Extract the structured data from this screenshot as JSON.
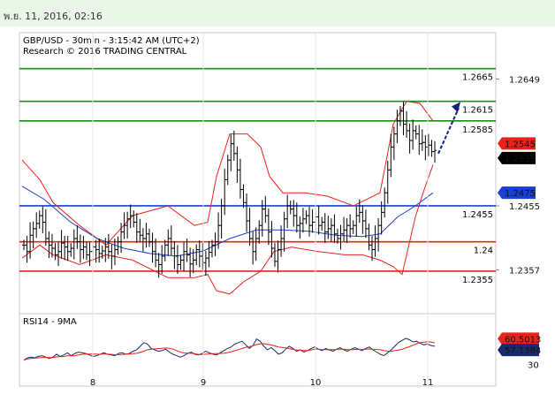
{
  "header": {
    "timestamp": "พ.ย. 11, 2016, 02:16"
  },
  "chart_data": {
    "type": "candlestick",
    "title": "GBP/USD - 30min - 3:15:42 AM (UTC+2)",
    "subtitle": "Research © 2016 TRADING CENTRAL",
    "y_axis_labels": [
      "1.2649",
      "1.2455",
      "1.2357"
    ],
    "x_axis_labels": [
      "8",
      "9",
      "10",
      "11"
    ],
    "price_ylim": [
      1.229,
      1.272
    ],
    "price_tags": [
      {
        "value": 1.2545,
        "label": "1.2545",
        "color": "#e8231b"
      },
      {
        "value": 1.2535,
        "label": "1.2535",
        "color": "#000000"
      },
      {
        "value": 1.2475,
        "label": "1.2475",
        "color": "#1a3fd1"
      }
    ],
    "resistance_levels": [
      {
        "value": 1.2665,
        "label": "1.2665",
        "color": "#1c8c1c"
      },
      {
        "value": 1.2615,
        "label": "1.2615",
        "color": "#1c8c1c"
      },
      {
        "value": 1.2585,
        "label": "1.2585",
        "color": "#1c8c1c"
      }
    ],
    "pivot_level": {
      "value": 1.2455,
      "label": "1.2455",
      "color": "#1a3fd1"
    },
    "support_levels": [
      {
        "value": 1.24,
        "label": "1.24",
        "color": "#e8231b"
      },
      {
        "value": 1.2355,
        "label": "1.2355",
        "color": "#e8231b"
      }
    ],
    "close_series": [
      1.2395,
      1.2385,
      1.241,
      1.242,
      1.2428,
      1.244,
      1.243,
      1.2405,
      1.2395,
      1.239,
      1.238,
      1.2385,
      1.2398,
      1.2392,
      1.2385,
      1.239,
      1.2405,
      1.24,
      1.2388,
      1.2392,
      1.238,
      1.2385,
      1.2392,
      1.2388,
      1.2382,
      1.2386,
      1.2392,
      1.2385,
      1.2378,
      1.2388,
      1.24,
      1.2415,
      1.2425,
      1.2435,
      1.244,
      1.243,
      1.2415,
      1.241,
      1.2405,
      1.2412,
      1.24,
      1.2385,
      1.2372,
      1.2365,
      1.2378,
      1.2395,
      1.2405,
      1.239,
      1.2378,
      1.2365,
      1.2372,
      1.2385,
      1.238,
      1.2366,
      1.2372,
      1.2388,
      1.2378,
      1.2368,
      1.2375,
      1.2384,
      1.2395,
      1.24,
      1.2425,
      1.2455,
      1.2495,
      1.2525,
      1.255,
      1.2535,
      1.251,
      1.248,
      1.246,
      1.2432,
      1.2405,
      1.2385,
      1.2405,
      1.2425,
      1.245,
      1.244,
      1.2415,
      1.239,
      1.237,
      1.2388,
      1.2405,
      1.2435,
      1.2455,
      1.245,
      1.244,
      1.2425,
      1.2428,
      1.2435,
      1.244,
      1.2425,
      1.243,
      1.2438,
      1.2425,
      1.243,
      1.2415,
      1.242,
      1.2425,
      1.2412,
      1.2405,
      1.2412,
      1.2418,
      1.2425,
      1.242,
      1.2425,
      1.244,
      1.2445,
      1.2432,
      1.242,
      1.2395,
      1.2388,
      1.2405,
      1.2425,
      1.2445,
      1.2475,
      1.251,
      1.2545,
      1.2565,
      1.2585,
      1.26,
      1.258,
      1.257,
      1.2555,
      1.257,
      1.2565,
      1.255,
      1.2552,
      1.2545,
      1.2548,
      1.2538,
      1.254
    ],
    "bollinger": {
      "upper": [
        [
          25,
          1.2525
        ],
        [
          45,
          1.2495
        ],
        [
          60,
          1.246
        ],
        [
          90,
          1.2425
        ],
        [
          120,
          1.2395
        ],
        [
          150,
          1.244
        ],
        [
          190,
          1.2455
        ],
        [
          220,
          1.2425
        ],
        [
          235,
          1.243
        ],
        [
          245,
          1.25
        ],
        [
          260,
          1.2565
        ],
        [
          280,
          1.2565
        ],
        [
          295,
          1.2545
        ],
        [
          305,
          1.25
        ],
        [
          320,
          1.2475
        ],
        [
          345,
          1.2475
        ],
        [
          370,
          1.247
        ],
        [
          400,
          1.2455
        ],
        [
          430,
          1.2475
        ],
        [
          445,
          1.258
        ],
        [
          460,
          1.2615
        ],
        [
          475,
          1.2612
        ],
        [
          490,
          1.2585
        ]
      ],
      "lower": [
        [
          25,
          1.2375
        ],
        [
          45,
          1.2395
        ],
        [
          60,
          1.238
        ],
        [
          90,
          1.2365
        ],
        [
          120,
          1.238
        ],
        [
          150,
          1.2372
        ],
        [
          190,
          1.2345
        ],
        [
          220,
          1.2345
        ],
        [
          235,
          1.235
        ],
        [
          245,
          1.2325
        ],
        [
          260,
          1.232
        ],
        [
          275,
          1.2338
        ],
        [
          295,
          1.2355
        ],
        [
          310,
          1.2385
        ],
        [
          330,
          1.2392
        ],
        [
          360,
          1.2385
        ],
        [
          390,
          1.238
        ],
        [
          410,
          1.238
        ],
        [
          430,
          1.2372
        ],
        [
          445,
          1.2362
        ],
        [
          455,
          1.235
        ],
        [
          470,
          1.2438
        ],
        [
          480,
          1.248
        ],
        [
          490,
          1.2518
        ]
      ]
    },
    "moving_average": [
      [
        25,
        1.2485
      ],
      [
        50,
        1.2465
      ],
      [
        80,
        1.243
      ],
      [
        110,
        1.2405
      ],
      [
        140,
        1.239
      ],
      [
        170,
        1.2382
      ],
      [
        200,
        1.2378
      ],
      [
        230,
        1.2386
      ],
      [
        260,
        1.2405
      ],
      [
        290,
        1.2418
      ],
      [
        320,
        1.2418
      ],
      [
        350,
        1.2416
      ],
      [
        380,
        1.241
      ],
      [
        410,
        1.2408
      ],
      [
        430,
        1.2412
      ],
      [
        450,
        1.2438
      ],
      [
        470,
        1.2455
      ],
      [
        490,
        1.2475
      ]
    ],
    "projection_arrow": {
      "from": 1.2535,
      "to": 1.261
    },
    "rsi": {
      "label": "RSI14 - 9MA",
      "tags": [
        {
          "value": 60.5013,
          "label": "60.5013",
          "color": "#e8231b"
        },
        {
          "value": 57.1384,
          "label": "57.1384",
          "color": "#1a2b6b"
        }
      ],
      "ticks": [
        "30"
      ],
      "ylim": [
        0,
        100
      ],
      "values": [
        36,
        39,
        40,
        39,
        41,
        42,
        40,
        38,
        40,
        44,
        41,
        43,
        46,
        42,
        45,
        47,
        46,
        45,
        43,
        41,
        42,
        44,
        46,
        44,
        43,
        42,
        45,
        46,
        44,
        45,
        48,
        50,
        55,
        60,
        58,
        52,
        50,
        48,
        49,
        51,
        47,
        44,
        42,
        40,
        42,
        45,
        47,
        44,
        43,
        45,
        48,
        46,
        44,
        43,
        46,
        49,
        52,
        54,
        58,
        60,
        62,
        57,
        52,
        56,
        65,
        62,
        55,
        50,
        53,
        49,
        44,
        46,
        51,
        55,
        52,
        48,
        50,
        47,
        49,
        52,
        54,
        51,
        49,
        52,
        50,
        48,
        51,
        53,
        50,
        48,
        51,
        53,
        51,
        49,
        52,
        54,
        50,
        47,
        44,
        42,
        46,
        50,
        55,
        60,
        63,
        66,
        64,
        61,
        62,
        59,
        57,
        58,
        56,
        55
      ]
    }
  }
}
